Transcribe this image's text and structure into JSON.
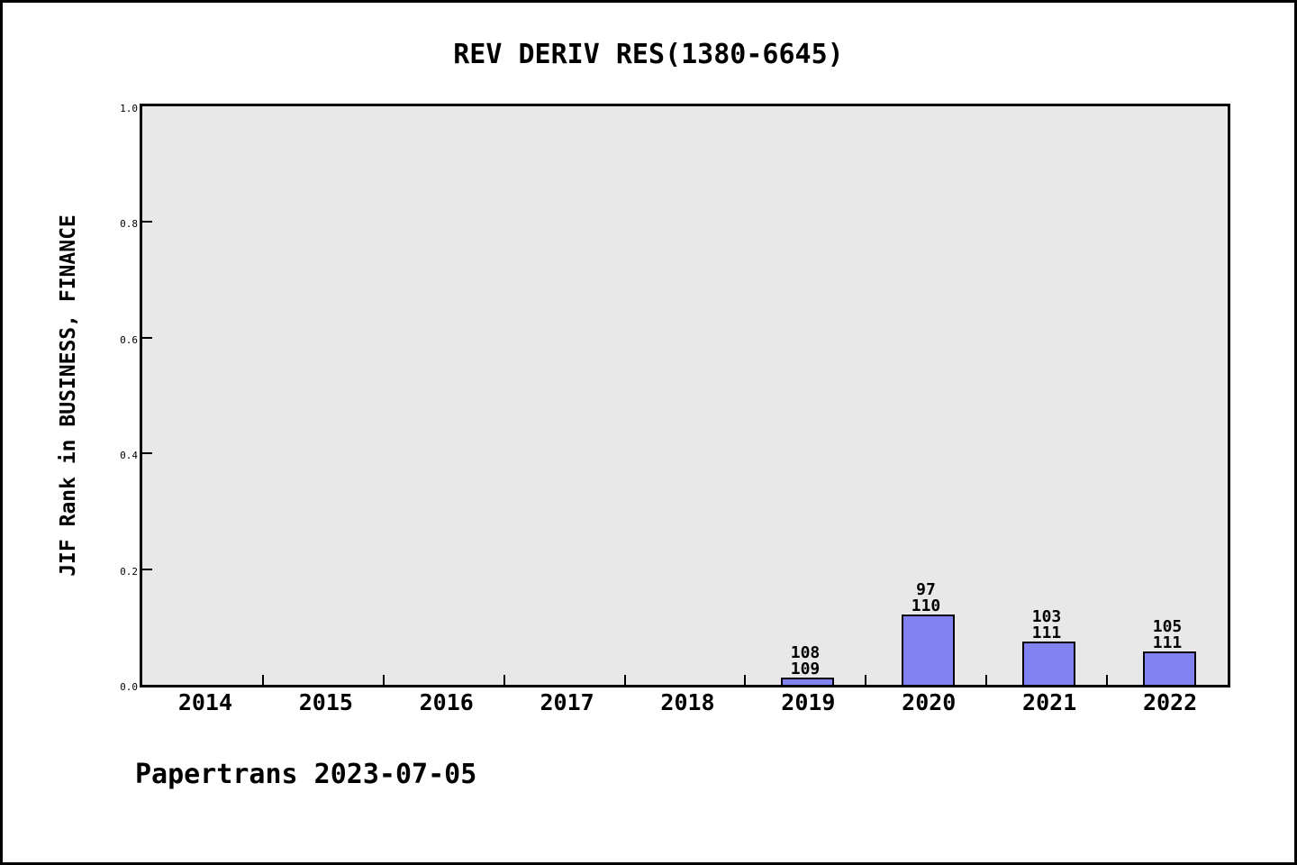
{
  "header": {
    "title": "REV DERIV RES(1380-6645)"
  },
  "footer": {
    "credit": "Papertrans 2023-07-05"
  },
  "chart_data": {
    "type": "bar",
    "title": "REV DERIV RES(1380-6645)",
    "xlabel": "",
    "ylabel": "JIF Rank in BUSINESS, FINANCE",
    "categories": [
      "2014",
      "2015",
      "2016",
      "2017",
      "2018",
      "2019",
      "2020",
      "2021",
      "2022"
    ],
    "values_by_category": [
      null,
      null,
      null,
      null,
      null,
      0.0092,
      0.1182,
      0.0721,
      0.0541
    ],
    "bars": [
      {
        "category": "2019",
        "rank": "108",
        "total": "109",
        "value": 0.0092
      },
      {
        "category": "2020",
        "rank": "97",
        "total": "110",
        "value": 0.1182
      },
      {
        "category": "2021",
        "rank": "103",
        "total": "111",
        "value": 0.0721
      },
      {
        "category": "2022",
        "rank": "105",
        "total": "111",
        "value": 0.0541
      }
    ],
    "ylim": [
      0.0,
      1.0
    ],
    "ytick_values": [
      0.0,
      0.2,
      0.4,
      0.6,
      0.8,
      1.0
    ],
    "ytick_labels": [
      "0.0",
      "0.2",
      "0.4",
      "0.6",
      "0.8",
      "1.0"
    ],
    "grid": false,
    "legend": null,
    "bar_color": "#8282f2",
    "bar_border_color": "#000000",
    "plot_bg_color": "#e8e8e8",
    "page_border_color": "#000000"
  }
}
